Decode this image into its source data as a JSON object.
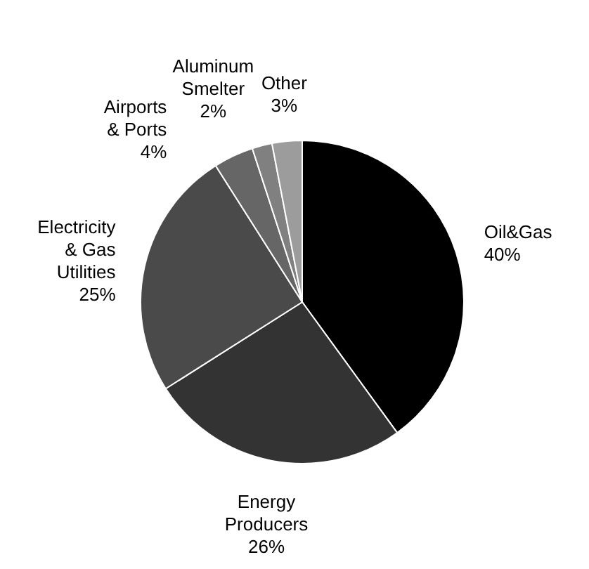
{
  "chart_data": {
    "type": "pie",
    "categories": [
      "Oil&Gas",
      "Energy Producers",
      "Electricity & Gas Utilities",
      "Airports & Ports",
      "Aluminum Smelter",
      "Other"
    ],
    "values": [
      40,
      26,
      25,
      4,
      2,
      3
    ],
    "value_labels": [
      "40%",
      "26%",
      "25%",
      "4%",
      "2%",
      "3%"
    ],
    "colors": [
      "#000000",
      "#333333",
      "#4a4a4a",
      "#666666",
      "#808080",
      "#9c9c9c"
    ]
  }
}
